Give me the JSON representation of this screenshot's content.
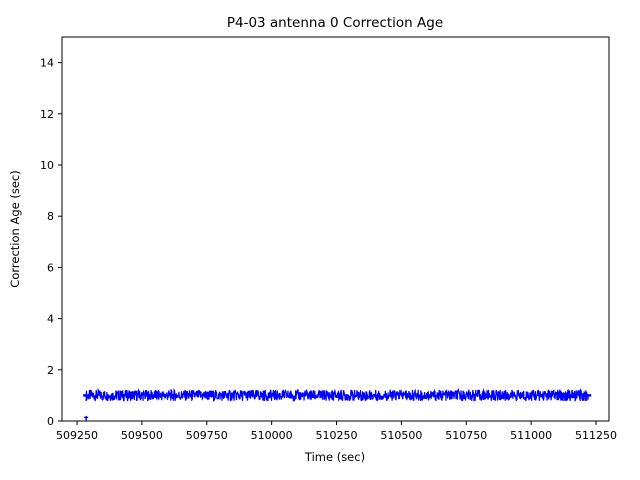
{
  "chart_data": {
    "type": "line",
    "title": "P4-03 antenna 0 Correction Age",
    "xlabel": "Time (sec)",
    "ylabel": "Correction Age (sec)",
    "xlim": [
      509192,
      511300
    ],
    "ylim": [
      0,
      15
    ],
    "xticks": [
      509250,
      509500,
      509750,
      510000,
      510250,
      510500,
      510750,
      511000,
      511250
    ],
    "yticks": [
      0,
      2,
      4,
      6,
      8,
      10,
      12,
      14
    ],
    "grid": false,
    "legend": false,
    "axes_color": "#000000",
    "background_color": "#ffffff",
    "series": [
      {
        "name": "correction-age",
        "color": "#0000ff",
        "style": "dense oscillating line forming a solid horizontal band",
        "band_x_start": 509285,
        "band_x_end": 511220,
        "band_y_min": 0.78,
        "band_y_max": 1.22,
        "band_y_mid": 1.0,
        "initial_spike": {
          "x": 509285,
          "y_from": 0.0,
          "y_to": 0.2
        }
      }
    ]
  }
}
